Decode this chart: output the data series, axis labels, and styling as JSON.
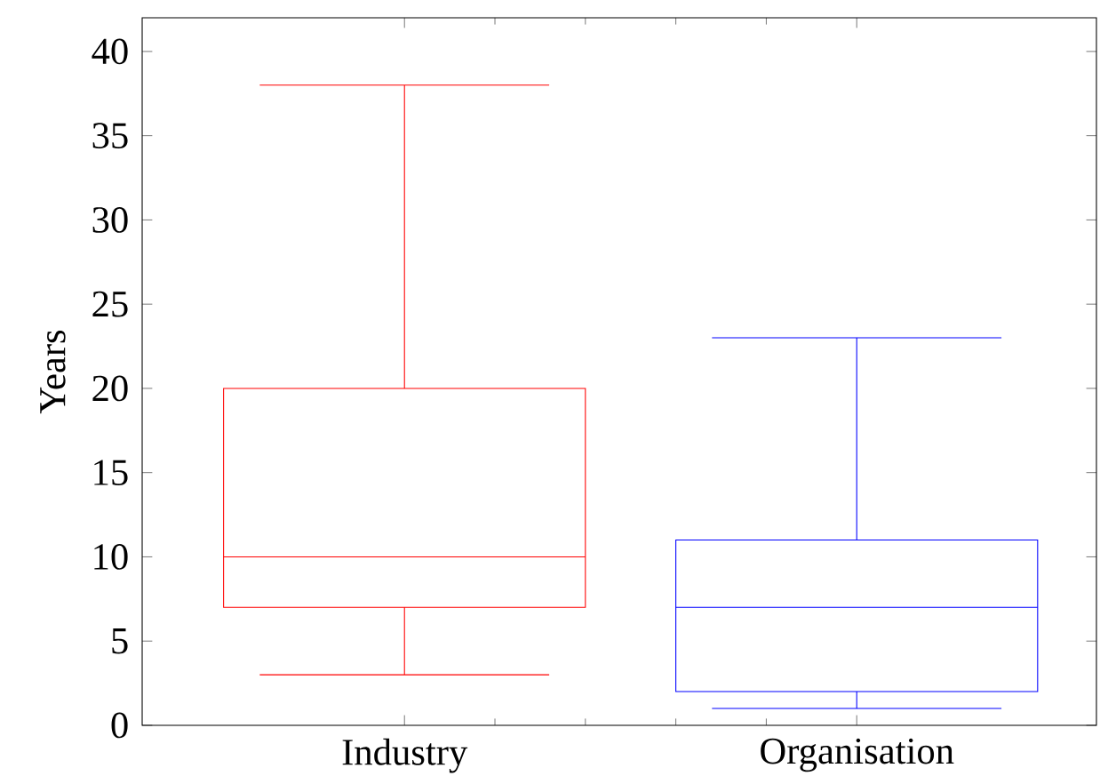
{
  "chart_data": {
    "type": "box",
    "ylabel": "Years",
    "categories": [
      "Industry",
      "Organisation"
    ],
    "colors": [
      "#ff0000",
      "#0000ff"
    ],
    "boxes": [
      {
        "low": 3,
        "q1": 7,
        "median": 10,
        "q3": 20,
        "high": 38
      },
      {
        "low": 1,
        "q1": 2,
        "median": 7,
        "q3": 11,
        "high": 23
      }
    ],
    "ylim": [
      0,
      42
    ],
    "yticks": [
      0,
      5,
      10,
      15,
      20,
      25,
      30,
      35,
      40
    ],
    "grid": false
  }
}
